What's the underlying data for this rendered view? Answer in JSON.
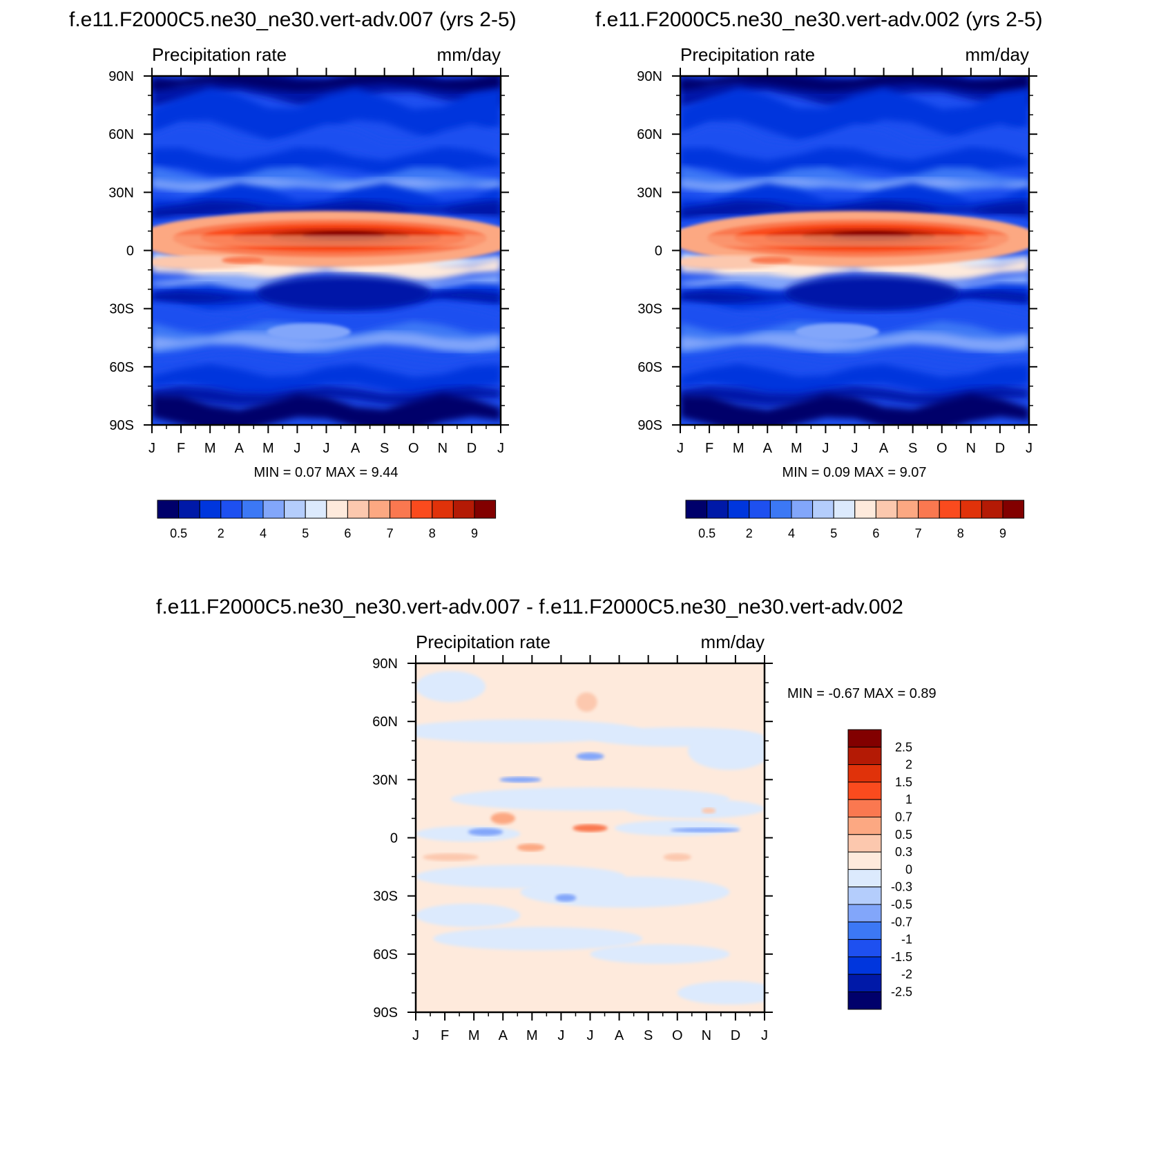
{
  "figure": {
    "title_left": "f.e11.F2000C5.ne30_ne30.vert-adv.007 (yrs 2-5)",
    "title_right": "f.e11.F2000C5.ne30_ne30.vert-adv.002 (yrs 2-5)",
    "title_diff": "f.e11.F2000C5.ne30_ne30.vert-adv.007 - f.e11.F2000C5.ne30_ne30.vert-adv.002"
  },
  "colors": {
    "precip_levels": [
      "#00006b",
      "#0019a8",
      "#0036dd",
      "#1e50f0",
      "#3c78f5",
      "#82a6fa",
      "#b4cdfc",
      "#dceafd",
      "#feeadc",
      "#fcc8ae",
      "#fca882",
      "#fa7850",
      "#fa4b1e",
      "#e0320a",
      "#b41a05",
      "#820000"
    ],
    "diff_levels": [
      "#00006b",
      "#0019a8",
      "#0036dd",
      "#1e50f0",
      "#3c78f5",
      "#82a6fa",
      "#b4cdfc",
      "#dceafd",
      "#feeadc",
      "#fcc8ae",
      "#fca882",
      "#fa7850",
      "#fa4b1e",
      "#e0320a",
      "#b41a05",
      "#820000"
    ]
  },
  "chart_data": [
    {
      "type": "heatmap",
      "id": "left",
      "title": "f.e11.F2000C5.ne30_ne30.vert-adv.007 (yrs 2-5)",
      "subtitle_left": "Precipitation rate",
      "subtitle_right": "mm/day",
      "x_ticks": [
        "J",
        "F",
        "M",
        "A",
        "M",
        "J",
        "J",
        "A",
        "S",
        "O",
        "N",
        "D",
        "J"
      ],
      "y_ticks": [
        "90N",
        "60N",
        "30N",
        "0",
        "30S",
        "60S",
        "90S"
      ],
      "xlim": [
        0,
        12
      ],
      "ylim": [
        -90,
        90
      ],
      "stats_label": "MIN =   0.07 MAX =    9.44",
      "min": 0.07,
      "max": 9.44,
      "colorbar_labels": [
        "0.5",
        "2",
        "4",
        "5",
        "6",
        "7",
        "8",
        "9"
      ],
      "itcz_peak": 9.44
    },
    {
      "type": "heatmap",
      "id": "right",
      "title": "f.e11.F2000C5.ne30_ne30.vert-adv.002 (yrs 2-5)",
      "subtitle_left": "Precipitation rate",
      "subtitle_right": "mm/day",
      "x_ticks": [
        "J",
        "F",
        "M",
        "A",
        "M",
        "J",
        "J",
        "A",
        "S",
        "O",
        "N",
        "D",
        "J"
      ],
      "y_ticks": [
        "90N",
        "60N",
        "30N",
        "0",
        "30S",
        "60S",
        "90S"
      ],
      "xlim": [
        0,
        12
      ],
      "ylim": [
        -90,
        90
      ],
      "stats_label": "MIN =   0.09 MAX =    9.07",
      "min": 0.09,
      "max": 9.07,
      "colorbar_labels": [
        "0.5",
        "2",
        "4",
        "5",
        "6",
        "7",
        "8",
        "9"
      ],
      "itcz_peak": 9.07
    },
    {
      "type": "heatmap",
      "id": "diff",
      "title": "f.e11.F2000C5.ne30_ne30.vert-adv.007 - f.e11.F2000C5.ne30_ne30.vert-adv.002",
      "subtitle_left": "Precipitation rate",
      "subtitle_right": "mm/day",
      "x_ticks": [
        "J",
        "F",
        "M",
        "A",
        "M",
        "J",
        "J",
        "A",
        "S",
        "O",
        "N",
        "D",
        "J"
      ],
      "y_ticks": [
        "90N",
        "60N",
        "30N",
        "0",
        "30S",
        "60S",
        "90S"
      ],
      "xlim": [
        0,
        12
      ],
      "ylim": [
        -90,
        90
      ],
      "stats_label": "MIN =  -0.67 MAX =    0.89",
      "min": -0.67,
      "max": 0.89,
      "colorbar_labels": [
        "2.5",
        "2",
        "1.5",
        "1",
        "0.7",
        "0.5",
        "0.3",
        "0",
        "-0.3",
        "-0.5",
        "-0.7",
        "-1",
        "-1.5",
        "-2",
        "-2.5"
      ]
    }
  ]
}
